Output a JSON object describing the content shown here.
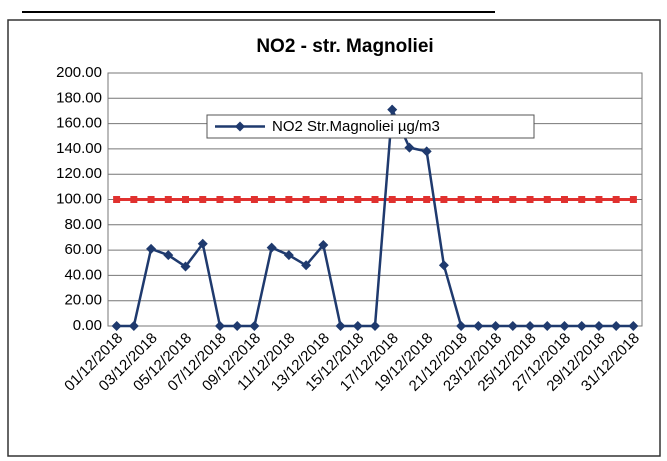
{
  "chart_data": {
    "type": "line",
    "title": "NO2 - str. Magnoliei",
    "categories": [
      "01/12/2018",
      null,
      "03/12/2018",
      null,
      "05/12/2018",
      null,
      "07/12/2018",
      null,
      "09/12/2018",
      null,
      "11/12/2018",
      null,
      "13/12/2018",
      null,
      "15/12/2018",
      null,
      "17/12/2018",
      null,
      "19/12/2018",
      null,
      "21/12/2018",
      null,
      "23/12/2018",
      null,
      "25/12/2018",
      null,
      "27/12/2018",
      null,
      "29/12/2018",
      null,
      "31/12/2018"
    ],
    "series": [
      {
        "name": "NO2 Str.Magnoliei  µg/m3",
        "color": "#1f3a6e",
        "marker": "diamond",
        "values": [
          0,
          0,
          61,
          56,
          47,
          65,
          0,
          0,
          0,
          62,
          56,
          48,
          64,
          0,
          0,
          0,
          171,
          141,
          138,
          48,
          0,
          0,
          0,
          0,
          0,
          0,
          0,
          0,
          0,
          0,
          0
        ]
      },
      {
        "color": "#e0312f",
        "marker": "square",
        "values": [
          100,
          100,
          100,
          100,
          100,
          100,
          100,
          100,
          100,
          100,
          100,
          100,
          100,
          100,
          100,
          100,
          100,
          100,
          100,
          100,
          100,
          100,
          100,
          100,
          100,
          100,
          100,
          100,
          100,
          100,
          100
        ]
      }
    ],
    "ylim": [
      0,
      200
    ],
    "yticks": [
      {
        "value": 0,
        "label": "0.00"
      },
      {
        "value": 20,
        "label": "20.00"
      },
      {
        "value": 40,
        "label": "40.00"
      },
      {
        "value": 60,
        "label": "60.00"
      },
      {
        "value": 80,
        "label": "80.00"
      },
      {
        "value": 100,
        "label": "100.00"
      },
      {
        "value": 120,
        "label": "120.00"
      },
      {
        "value": 140,
        "label": "140.00"
      },
      {
        "value": 160,
        "label": "160.00"
      },
      {
        "value": 180,
        "label": "180.00"
      },
      {
        "value": 200,
        "label": "200.00"
      }
    ],
    "grid": true,
    "legend": "top"
  }
}
